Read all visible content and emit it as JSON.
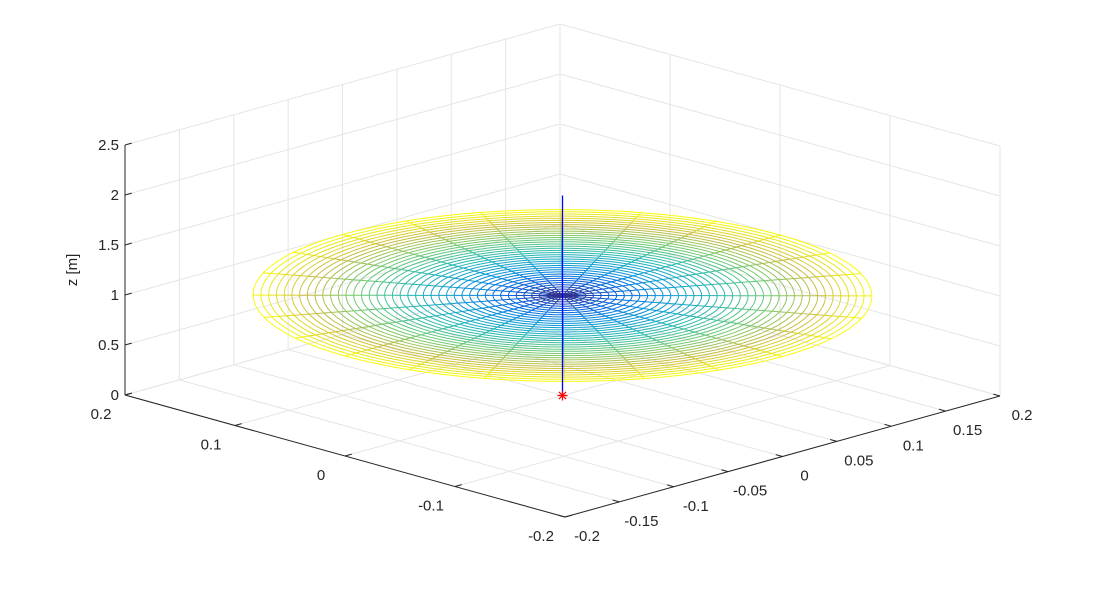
{
  "chart_data": {
    "type": "surface3d",
    "title": "",
    "xlabel": "",
    "ylabel": "",
    "zlabel": "z [m]",
    "xlim": [
      -0.2,
      0.2
    ],
    "ylim": [
      -0.2,
      0.2
    ],
    "zlim": [
      0,
      2.5
    ],
    "x_ticks": [
      "-0.2",
      "-0.1",
      "0",
      "0.1",
      "0.2"
    ],
    "y_ticks": [
      "-0.2",
      "-0.15",
      "-0.1",
      "-0.05",
      "0",
      "0.05",
      "0.1",
      "0.15",
      "0.2"
    ],
    "z_ticks": [
      "0",
      "0.5",
      "1",
      "1.5",
      "2",
      "2.5"
    ],
    "grid": true,
    "view": "3d isometric (default azimuth/elevation)",
    "colormap": "parula",
    "surface": {
      "shape": "flat disk (polar mesh)",
      "center": [
        0,
        0
      ],
      "z": 1,
      "radius": 0.2,
      "radial_rings": 40,
      "angular_segments": 24
    },
    "vertical_line": {
      "x": 0,
      "y": 0,
      "z_from": 0,
      "z_to": 2,
      "color": "#0000ff"
    },
    "point_marker": {
      "x": 0,
      "y": 0,
      "z": 0,
      "marker": "*",
      "color": "#ff0000"
    },
    "colors": {
      "grid": "#e5e5e5",
      "axes": "#262626",
      "line": "#0000ff",
      "marker": "#ff0000"
    }
  }
}
